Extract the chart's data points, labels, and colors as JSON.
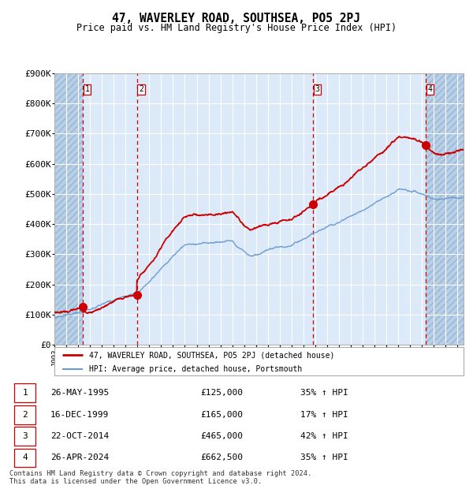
{
  "title": "47, WAVERLEY ROAD, SOUTHSEA, PO5 2PJ",
  "subtitle": "Price paid vs. HM Land Registry's House Price Index (HPI)",
  "hpi_label": "HPI: Average price, detached house, Portsmouth",
  "property_label": "47, WAVERLEY ROAD, SOUTHSEA, PO5 2PJ (detached house)",
  "footer": "Contains HM Land Registry data © Crown copyright and database right 2024.\nThis data is licensed under the Open Government Licence v3.0.",
  "sale_dates_str": [
    "26-MAY-1995",
    "16-DEC-1999",
    "22-OCT-2014",
    "26-APR-2024"
  ],
  "sale_prices": [
    125000,
    165000,
    465000,
    662500
  ],
  "sale_pct": [
    "35% ↑ HPI",
    "17% ↑ HPI",
    "42% ↑ HPI",
    "35% ↑ HPI"
  ],
  "sale_dates_num": [
    1995.4,
    1999.96,
    2014.81,
    2024.32
  ],
  "vline_dates": [
    1995.4,
    1999.96,
    2014.81,
    2024.32
  ],
  "ylim": [
    0,
    900000
  ],
  "xlim_left": 1993.0,
  "xlim_right": 2027.5,
  "yticks": [
    0,
    100000,
    200000,
    300000,
    400000,
    500000,
    600000,
    700000,
    800000,
    900000
  ],
  "ytick_labels": [
    "£0",
    "£100K",
    "£200K",
    "£300K",
    "£400K",
    "£500K",
    "£600K",
    "£700K",
    "£800K",
    "£900K"
  ],
  "xticks": [
    1993,
    1994,
    1995,
    1996,
    1997,
    1998,
    1999,
    2000,
    2001,
    2002,
    2003,
    2004,
    2005,
    2006,
    2007,
    2008,
    2009,
    2010,
    2011,
    2012,
    2013,
    2014,
    2015,
    2016,
    2017,
    2018,
    2019,
    2020,
    2021,
    2022,
    2023,
    2024,
    2025,
    2026,
    2027
  ],
  "bg_color": "#dce9f8",
  "hatch_color": "#b8cfe8",
  "grid_color": "#ffffff",
  "red_line_color": "#cc0000",
  "blue_line_color": "#6699cc",
  "dot_color": "#cc0000",
  "vline_color": "#cc0000",
  "box_edge_color": "#cc0000"
}
